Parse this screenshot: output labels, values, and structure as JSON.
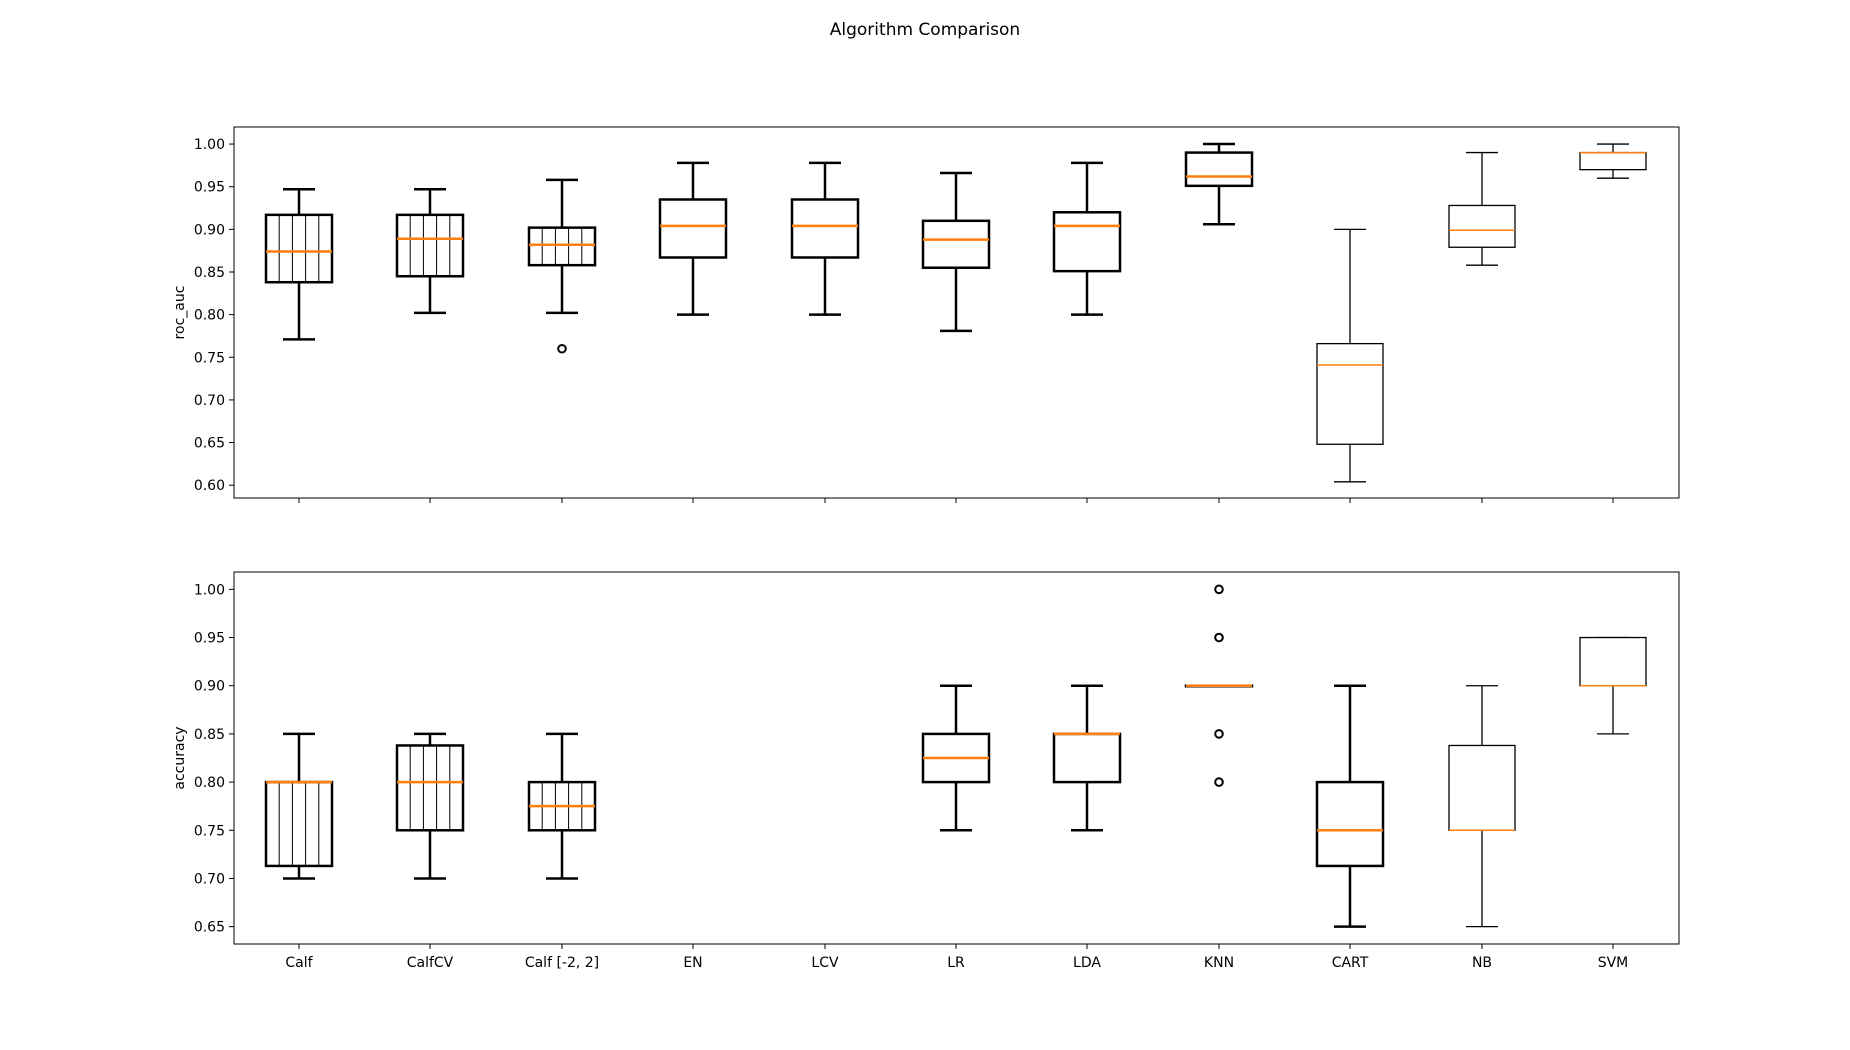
{
  "figure": {
    "title": "Algorithm Comparison"
  },
  "chart_data": [
    {
      "type": "box",
      "ylabel": "roc_auc",
      "xlabel": "",
      "ylim": [
        0.585,
        1.02
      ],
      "yticks": [
        "0.60",
        "0.65",
        "0.70",
        "0.75",
        "0.80",
        "0.85",
        "0.90",
        "0.95",
        "1.00"
      ],
      "categories": [
        "Calf",
        "CalfCV",
        "Calf [-2, 2]",
        "EN",
        "LCV",
        "LR",
        "LDA",
        "KNN",
        "CART",
        "NB",
        "SVM"
      ],
      "show_xtick_labels": false,
      "boxes": [
        {
          "category": "Calf",
          "whislo": 0.771,
          "q1": 0.838,
          "med": 0.874,
          "q3": 0.917,
          "whishi": 0.947,
          "fliers": [],
          "hatch": true,
          "bold": true
        },
        {
          "category": "CalfCV",
          "whislo": 0.802,
          "q1": 0.845,
          "med": 0.889,
          "q3": 0.917,
          "whishi": 0.947,
          "fliers": [],
          "hatch": true,
          "bold": true
        },
        {
          "category": "Calf [-2, 2]",
          "whislo": 0.802,
          "q1": 0.858,
          "med": 0.882,
          "q3": 0.902,
          "whishi": 0.958,
          "fliers": [
            0.76
          ],
          "hatch": true,
          "bold": true
        },
        {
          "category": "EN",
          "whislo": 0.8,
          "q1": 0.867,
          "med": 0.904,
          "q3": 0.935,
          "whishi": 0.978,
          "fliers": [],
          "hatch": false,
          "bold": true
        },
        {
          "category": "LCV",
          "whislo": 0.8,
          "q1": 0.867,
          "med": 0.904,
          "q3": 0.935,
          "whishi": 0.978,
          "fliers": [],
          "hatch": false,
          "bold": true
        },
        {
          "category": "LR",
          "whislo": 0.781,
          "q1": 0.855,
          "med": 0.888,
          "q3": 0.91,
          "whishi": 0.966,
          "fliers": [],
          "hatch": false,
          "bold": true
        },
        {
          "category": "LDA",
          "whislo": 0.8,
          "q1": 0.851,
          "med": 0.904,
          "q3": 0.92,
          "whishi": 0.978,
          "fliers": [],
          "hatch": false,
          "bold": true
        },
        {
          "category": "KNN",
          "whislo": 0.906,
          "q1": 0.951,
          "med": 0.962,
          "q3": 0.99,
          "whishi": 1.0,
          "fliers": [],
          "hatch": false,
          "bold": true
        },
        {
          "category": "CART",
          "whislo": 0.604,
          "q1": 0.648,
          "med": 0.741,
          "q3": 0.766,
          "whishi": 0.9,
          "fliers": [],
          "hatch": false,
          "bold": false
        },
        {
          "category": "NB",
          "whislo": 0.858,
          "q1": 0.879,
          "med": 0.899,
          "q3": 0.928,
          "whishi": 0.99,
          "fliers": [],
          "hatch": false,
          "bold": false
        },
        {
          "category": "SVM",
          "whislo": 0.96,
          "q1": 0.97,
          "med": 0.99,
          "q3": 0.99,
          "whishi": 1.0,
          "fliers": [],
          "hatch": false,
          "bold": false
        }
      ]
    },
    {
      "type": "box",
      "ylabel": "accuracy",
      "xlabel": "",
      "ylim": [
        0.632,
        1.018
      ],
      "yticks": [
        "0.65",
        "0.70",
        "0.75",
        "0.80",
        "0.85",
        "0.90",
        "0.95",
        "1.00"
      ],
      "categories": [
        "Calf",
        "CalfCV",
        "Calf [-2, 2]",
        "EN",
        "LCV",
        "LR",
        "LDA",
        "KNN",
        "CART",
        "NB",
        "SVM"
      ],
      "show_xtick_labels": true,
      "boxes": [
        {
          "category": "Calf",
          "whislo": 0.7,
          "q1": 0.713,
          "med": 0.8,
          "q3": 0.8,
          "whishi": 0.85,
          "fliers": [],
          "hatch": true,
          "bold": true
        },
        {
          "category": "CalfCV",
          "whislo": 0.7,
          "q1": 0.75,
          "med": 0.8,
          "q3": 0.838,
          "whishi": 0.85,
          "fliers": [],
          "hatch": true,
          "bold": true
        },
        {
          "category": "Calf [-2, 2]",
          "whislo": 0.7,
          "q1": 0.75,
          "med": 0.775,
          "q3": 0.8,
          "whishi": 0.85,
          "fliers": [],
          "hatch": true,
          "bold": true
        },
        {
          "category": "EN",
          "empty": true
        },
        {
          "category": "LCV",
          "empty": true
        },
        {
          "category": "LR",
          "whislo": 0.75,
          "q1": 0.8,
          "med": 0.825,
          "q3": 0.85,
          "whishi": 0.9,
          "fliers": [],
          "hatch": false,
          "bold": true
        },
        {
          "category": "LDA",
          "whislo": 0.75,
          "q1": 0.8,
          "med": 0.85,
          "q3": 0.85,
          "whishi": 0.9,
          "fliers": [],
          "hatch": false,
          "bold": true
        },
        {
          "category": "KNN",
          "whislo": 0.9,
          "q1": 0.9,
          "med": 0.9,
          "q3": 0.9,
          "whishi": 0.9,
          "fliers": [
            0.8,
            0.85,
            0.95,
            1.0
          ],
          "hatch": false,
          "bold": true
        },
        {
          "category": "CART",
          "whislo": 0.65,
          "q1": 0.713,
          "med": 0.75,
          "q3": 0.8,
          "whishi": 0.9,
          "fliers": [],
          "hatch": false,
          "bold": true
        },
        {
          "category": "NB",
          "whislo": 0.65,
          "q1": 0.75,
          "med": 0.75,
          "q3": 0.838,
          "whishi": 0.9,
          "fliers": [],
          "hatch": false,
          "bold": false
        },
        {
          "category": "SVM",
          "whislo": 0.85,
          "q1": 0.9,
          "med": 0.9,
          "q3": 0.95,
          "whishi": 0.95,
          "fliers": [],
          "hatch": false,
          "bold": false
        }
      ]
    }
  ],
  "colors": {
    "box": "#000000",
    "median": "#ff7f0e",
    "background": "#ffffff"
  }
}
